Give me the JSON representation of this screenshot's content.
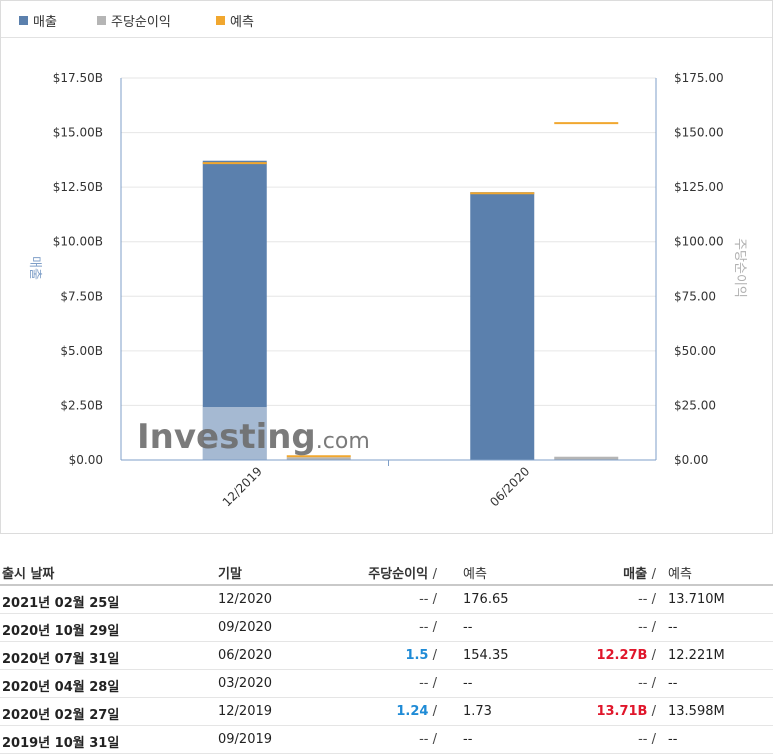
{
  "legend": [
    {
      "label": "매출",
      "color": "#5b80ad"
    },
    {
      "label": "주당순이익",
      "color": "#b5b5b5"
    },
    {
      "label": "예측",
      "color": "#f1a72f"
    }
  ],
  "chart_data": {
    "type": "bar",
    "categories": [
      "12/2019",
      "06/2020"
    ],
    "left_axis": {
      "label": "매출",
      "ticks": [
        "$0.00",
        "$2.50B",
        "$5.00B",
        "$7.50B",
        "$10.00B",
        "$12.50B",
        "$15.00B",
        "$17.50B"
      ],
      "range": [
        0,
        17.5
      ],
      "unit": "B"
    },
    "right_axis": {
      "label": "주당순이익",
      "ticks": [
        "$0.00",
        "$25.00",
        "$50.00",
        "$75.00",
        "$100.00",
        "$125.00",
        "$150.00",
        "$175.00"
      ],
      "range": [
        0,
        175
      ]
    },
    "series": [
      {
        "name": "매출",
        "axis": "left",
        "values": [
          13.71,
          12.27
        ]
      },
      {
        "name": "매출 예측",
        "axis": "left",
        "values": [
          13.598,
          12.221
        ]
      },
      {
        "name": "주당순이익",
        "axis": "right",
        "values": [
          1.24,
          1.5
        ]
      },
      {
        "name": "주당순이익 예측",
        "axis": "right",
        "values": [
          1.73,
          154.35
        ]
      }
    ],
    "colors": {
      "revenue": "#5b80ad",
      "eps": "#b5b5b5",
      "forecast": "#f1a72f",
      "axis": "#7f9fc8"
    },
    "watermark": "Investing.com",
    "grid": true
  },
  "table": {
    "headers": {
      "release_date": "출시 날짜",
      "period": "기말",
      "eps": "주당순이익",
      "slash": "/",
      "forecast": "예측",
      "revenue": "매출"
    },
    "rows": [
      {
        "date": "2021년 02월 25일",
        "period": "12/2020",
        "eps": "--",
        "eps_class": "muted",
        "eps_fc": "176.65",
        "rev": "--",
        "rev_class": "muted",
        "rev_fc": "13.710M"
      },
      {
        "date": "2020년 10월 29일",
        "period": "09/2020",
        "eps": "--",
        "eps_class": "muted",
        "eps_fc": "--",
        "rev": "--",
        "rev_class": "muted",
        "rev_fc": "--"
      },
      {
        "date": "2020년 07월 31일",
        "period": "06/2020",
        "eps": "1.5",
        "eps_class": "blue",
        "eps_fc": "154.35",
        "rev": "12.27B",
        "rev_class": "red",
        "rev_fc": "12.221M"
      },
      {
        "date": "2020년 04월 28일",
        "period": "03/2020",
        "eps": "--",
        "eps_class": "muted",
        "eps_fc": "--",
        "rev": "--",
        "rev_class": "muted",
        "rev_fc": "--"
      },
      {
        "date": "2020년 02월 27일",
        "period": "12/2019",
        "eps": "1.24",
        "eps_class": "blue",
        "eps_fc": "1.73",
        "rev": "13.71B",
        "rev_class": "red",
        "rev_fc": "13.598M"
      },
      {
        "date": "2019년 10월 31일",
        "period": "09/2019",
        "eps": "--",
        "eps_class": "muted",
        "eps_fc": "--",
        "rev": "--",
        "rev_class": "muted",
        "rev_fc": "--"
      }
    ]
  }
}
